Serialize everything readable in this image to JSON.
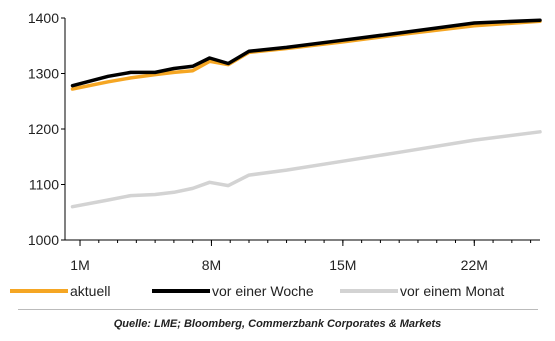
{
  "chart_data": {
    "type": "line",
    "x_tick_labels": [
      "1M",
      "8M",
      "15M",
      "22M"
    ],
    "x_ticks": [
      1,
      8,
      15,
      22
    ],
    "xlim": [
      0.2,
      25.5
    ],
    "ylim": [
      1000,
      1400
    ],
    "y_ticks": [
      1000,
      1100,
      1200,
      1300,
      1400
    ],
    "series": [
      {
        "name": "aktuell",
        "color": "#f5a623",
        "points": [
          [
            0.6,
            1272
          ],
          [
            2.5,
            1285
          ],
          [
            3.7,
            1292
          ],
          [
            5.0,
            1298
          ],
          [
            6.0,
            1302
          ],
          [
            7.0,
            1305
          ],
          [
            7.9,
            1322
          ],
          [
            8.9,
            1316
          ],
          [
            10.0,
            1338
          ],
          [
            12,
            1345
          ],
          [
            15,
            1357
          ],
          [
            18,
            1370
          ],
          [
            22,
            1386
          ],
          [
            25.5,
            1394
          ]
        ]
      },
      {
        "name": "vor einer Woche",
        "color": "#000000",
        "points": [
          [
            0.6,
            1278
          ],
          [
            2.5,
            1295
          ],
          [
            3.7,
            1302
          ],
          [
            5.0,
            1302
          ],
          [
            6.0,
            1309
          ],
          [
            7.0,
            1313
          ],
          [
            7.9,
            1328
          ],
          [
            8.9,
            1318
          ],
          [
            10.0,
            1340
          ],
          [
            12,
            1347
          ],
          [
            15,
            1360
          ],
          [
            18,
            1373
          ],
          [
            22,
            1391
          ],
          [
            25.5,
            1396
          ]
        ]
      },
      {
        "name": "vor einem Monat",
        "color": "#d3d3d3",
        "points": [
          [
            0.6,
            1060
          ],
          [
            2.5,
            1072
          ],
          [
            3.7,
            1080
          ],
          [
            5.0,
            1082
          ],
          [
            6.0,
            1086
          ],
          [
            7.0,
            1093
          ],
          [
            7.9,
            1104
          ],
          [
            8.9,
            1098
          ],
          [
            10.0,
            1117
          ],
          [
            12,
            1126
          ],
          [
            15,
            1142
          ],
          [
            18,
            1158
          ],
          [
            22,
            1180
          ],
          [
            25.5,
            1195
          ]
        ]
      }
    ],
    "grid": false,
    "legend_position": "bottom"
  },
  "source": "Quelle: LME; Bloomberg, Commerzbank Corporates & Markets"
}
